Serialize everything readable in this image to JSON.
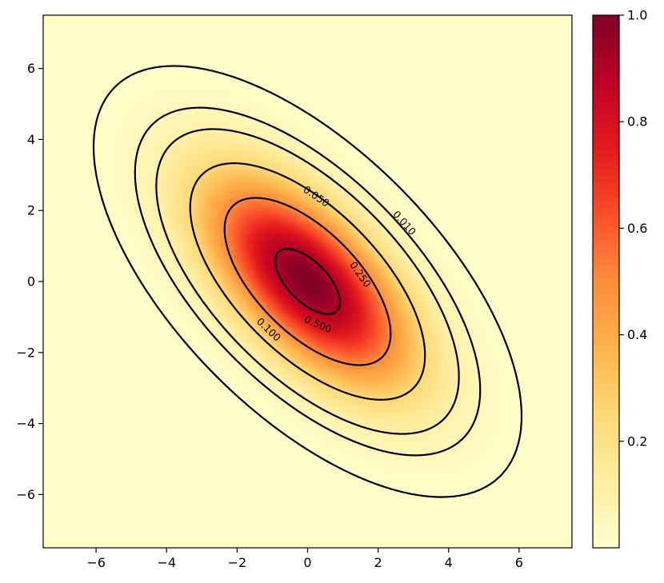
{
  "chart_data": {
    "type": "heatmap",
    "title": "",
    "xlabel": "",
    "ylabel": "",
    "xlim": [
      -7.5,
      7.5
    ],
    "ylim": [
      -7.5,
      7.5
    ],
    "x_ticks": [
      -6,
      -4,
      -2,
      0,
      2,
      4,
      6
    ],
    "y_ticks": [
      -6,
      -4,
      -2,
      0,
      2,
      4,
      6
    ],
    "x_tick_labels": [
      "−6",
      "−4",
      "−2",
      "0",
      "2",
      "4",
      "6"
    ],
    "y_tick_labels": [
      "−6",
      "−4",
      "−2",
      "0",
      "2",
      "4",
      "6"
    ],
    "function": "exp(-0.5 * [x y] Σ⁻¹ [x y]ᵀ), Σ = [[4, -2.5], [-2.5, 4]]",
    "covariance": [
      [
        4,
        -2.5
      ],
      [
        -2.5,
        4
      ]
    ],
    "colormap": "YlOrRd",
    "colormap_stops": [
      "#ffffcc",
      "#ffeda0",
      "#fed976",
      "#feb24c",
      "#fd8d3c",
      "#fc4e2a",
      "#e31a1c",
      "#bd0026",
      "#800026"
    ],
    "value_range": [
      0,
      1
    ],
    "contour_levels": [
      0.01,
      0.05,
      0.1,
      0.25,
      0.5,
      0.9
    ],
    "contour_labels": [
      {
        "text": "0.010",
        "level": 0.01,
        "x": 2.75,
        "y": 1.65
      },
      {
        "text": "0.050",
        "level": 0.05,
        "x": 0.25,
        "y": 2.4
      },
      {
        "text": "0.100",
        "level": 0.1,
        "x": -1.1,
        "y": -1.35
      },
      {
        "text": "0.250",
        "level": 0.25,
        "x": 1.5,
        "y": 0.2
      },
      {
        "text": "0.500",
        "level": 0.5,
        "x": 0.3,
        "y": -1.2
      }
    ],
    "colorbar": {
      "range": [
        0.0,
        1.0
      ],
      "ticks": [
        0.2,
        0.4,
        0.6,
        0.8,
        1.0
      ],
      "tick_labels": [
        "0.2",
        "0.4",
        "0.6",
        "0.8",
        "1.0"
      ]
    },
    "grid": false,
    "legend": "none"
  }
}
